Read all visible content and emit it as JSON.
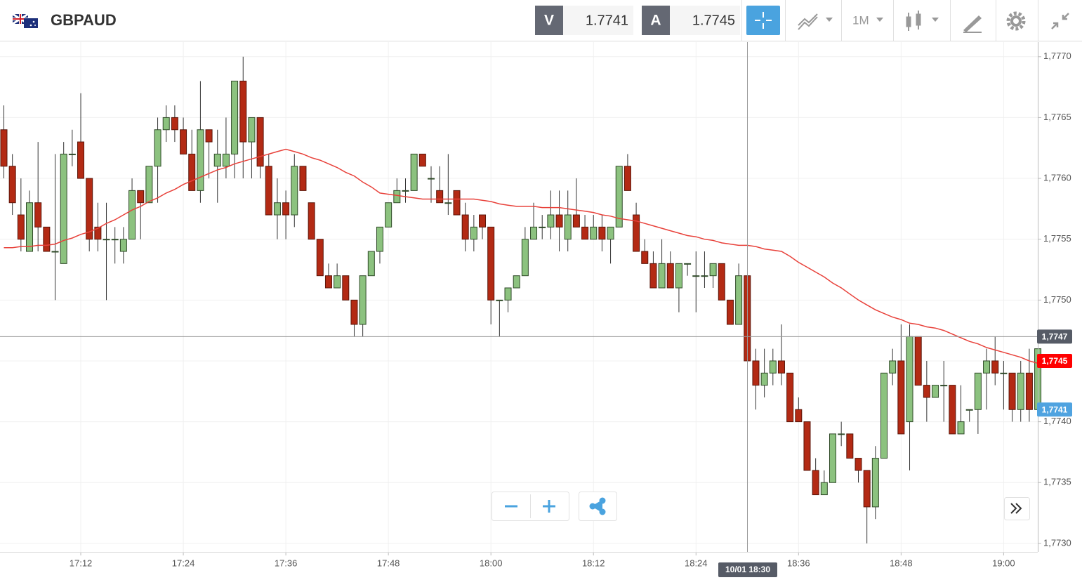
{
  "header": {
    "symbol": "GBPAUD",
    "bid_label": "V",
    "bid": 1.7741,
    "ask_label": "A",
    "ask": 1.7745,
    "timeframe": "1M"
  },
  "chart_data": {
    "type": "candlestick",
    "categories": [
      null,
      null,
      null,
      null,
      null,
      null,
      null,
      null,
      null,
      "17:12",
      null,
      null,
      null,
      null,
      null,
      null,
      null,
      null,
      null,
      null,
      null,
      "17:24",
      null,
      null,
      null,
      null,
      null,
      null,
      null,
      null,
      null,
      null,
      null,
      "17:36",
      null,
      null,
      null,
      null,
      null,
      null,
      null,
      null,
      null,
      null,
      null,
      "17:48",
      null,
      null,
      null,
      null,
      null,
      null,
      null,
      null,
      null,
      null,
      null,
      "18:00",
      null,
      null,
      null,
      null,
      null,
      null,
      null,
      null,
      null,
      null,
      null,
      "18:12",
      null,
      null,
      null,
      null,
      null,
      null,
      null,
      null,
      null,
      null,
      null,
      "18:24",
      null,
      null,
      null,
      null,
      null,
      null,
      null,
      null,
      null,
      null,
      null,
      "18:36",
      null,
      null,
      null,
      null,
      null,
      null,
      null,
      null,
      null,
      null,
      null,
      "18:48",
      null,
      null,
      null,
      null,
      null,
      null,
      null,
      null,
      null,
      null,
      null,
      "19:00",
      null,
      null,
      null,
      null
    ],
    "open": [
      1.7764,
      1.7761,
      1.7757,
      1.7754,
      1.7758,
      1.7756,
      1.7754,
      1.7753,
      1.7762,
      1.7763,
      1.776,
      1.7756,
      1.7755,
      1.7755,
      1.7754,
      1.7755,
      1.7759,
      1.7758,
      1.7761,
      1.7764,
      1.7765,
      1.7764,
      1.7762,
      1.7759,
      1.7764,
      1.7761,
      1.7761,
      1.7762,
      1.7768,
      1.7763,
      1.7765,
      1.7761,
      1.7757,
      1.7758,
      1.7757,
      1.7761,
      1.7758,
      1.7755,
      1.7752,
      1.7751,
      1.7752,
      1.775,
      1.7748,
      1.7752,
      1.7754,
      1.7756,
      1.7758,
      1.7759,
      1.7759,
      1.7762,
      1.776,
      1.7759,
      1.7758,
      1.7759,
      1.7757,
      1.7755,
      1.7757,
      1.7756,
      1.775,
      1.775,
      1.7751,
      1.7752,
      1.7755,
      1.7756,
      1.7756,
      1.7757,
      1.7755,
      1.7757,
      1.7756,
      1.7755,
      1.7756,
      1.7755,
      1.7756,
      1.7761,
      1.7757,
      1.7754,
      1.7753,
      1.7751,
      1.7753,
      1.7751,
      1.7753,
      1.7752,
      1.7752,
      1.7752,
      1.7753,
      1.775,
      1.7748,
      1.7752,
      1.7745,
      1.7743,
      1.7744,
      1.7745,
      1.7744,
      1.7741,
      1.774,
      1.7736,
      1.7734,
      1.7735,
      1.7739,
      1.7739,
      1.7737,
      1.7736,
      1.7733,
      1.7737,
      1.7744,
      1.7745,
      1.774,
      1.7747,
      1.7743,
      1.7742,
      1.7743,
      1.7743,
      1.7739,
      1.7741,
      1.7741,
      1.7744,
      1.7745,
      1.7744,
      1.7744,
      1.7741,
      1.7744,
      1.7741
    ],
    "high": [
      1.7766,
      1.7762,
      1.776,
      1.7759,
      1.7763,
      1.7756,
      1.7762,
      1.7763,
      1.7764,
      1.7767,
      1.776,
      1.7758,
      1.7758,
      1.7756,
      1.7756,
      1.776,
      1.7759,
      1.7761,
      1.7765,
      1.7766,
      1.7766,
      1.7765,
      1.7764,
      1.7768,
      1.7764,
      1.7764,
      1.7765,
      1.7768,
      1.777,
      1.7765,
      1.7765,
      1.7762,
      1.776,
      1.7759,
      1.7762,
      1.7761,
      1.7758,
      1.7755,
      1.7753,
      1.7753,
      1.7752,
      1.775,
      1.7752,
      1.7754,
      1.7756,
      1.7758,
      1.776,
      1.776,
      1.7762,
      1.7762,
      1.7761,
      1.7761,
      1.7762,
      1.7759,
      1.7758,
      1.7757,
      1.7757,
      1.7756,
      1.775,
      1.7751,
      1.7752,
      1.7756,
      1.7758,
      1.7757,
      1.7759,
      1.7759,
      1.7759,
      1.776,
      1.7757,
      1.7757,
      1.7757,
      1.7756,
      1.7761,
      1.7762,
      1.7758,
      1.7755,
      1.7754,
      1.7755,
      1.7754,
      1.7753,
      1.7753,
      1.7754,
      1.7754,
      1.7753,
      1.7753,
      1.775,
      1.7753,
      1.7752,
      1.7746,
      1.7746,
      1.7746,
      1.7748,
      1.7744,
      1.7742,
      1.774,
      1.7737,
      1.7736,
      1.7739,
      1.774,
      1.7739,
      1.7737,
      1.7736,
      1.7738,
      1.7744,
      1.7746,
      1.7748,
      1.7748,
      1.7747,
      1.7745,
      1.7743,
      1.7745,
      1.7743,
      1.7743,
      1.7741,
      1.7744,
      1.7746,
      1.7747,
      1.7745,
      1.7744,
      1.7745,
      1.7746,
      1.7746
    ],
    "low": [
      1.776,
      1.7757,
      1.7754,
      1.7754,
      1.7754,
      1.7754,
      1.775,
      1.7753,
      1.7761,
      1.776,
      1.7754,
      1.7754,
      1.775,
      1.7753,
      1.7753,
      1.7755,
      1.7755,
      1.7758,
      1.7758,
      1.7763,
      1.7763,
      1.7762,
      1.7759,
      1.7758,
      1.776,
      1.7758,
      1.776,
      1.776,
      1.776,
      1.776,
      1.776,
      1.7757,
      1.7755,
      1.7755,
      1.7756,
      1.7759,
      1.7755,
      1.7752,
      1.7751,
      1.7751,
      1.775,
      1.7747,
      1.7747,
      1.7752,
      1.7753,
      1.7756,
      1.7758,
      1.7758,
      1.7759,
      1.7761,
      1.7758,
      1.7758,
      1.7757,
      1.7757,
      1.7754,
      1.7754,
      1.7755,
      1.7748,
      1.7747,
      1.7749,
      1.7751,
      1.7752,
      1.7755,
      1.7755,
      1.7755,
      1.7754,
      1.7754,
      1.7756,
      1.7755,
      1.7755,
      1.7754,
      1.7753,
      1.7756,
      1.7759,
      1.7754,
      1.7753,
      1.7751,
      1.7751,
      1.7751,
      1.7749,
      1.7752,
      1.7749,
      1.7751,
      1.7751,
      1.775,
      1.7748,
      1.7748,
      1.7745,
      1.7741,
      1.7742,
      1.7743,
      1.7743,
      1.774,
      1.774,
      1.7736,
      1.7734,
      1.7734,
      1.7735,
      1.7738,
      1.7737,
      1.7735,
      1.773,
      1.7732,
      1.7737,
      1.7743,
      1.7739,
      1.7736,
      1.7743,
      1.774,
      1.7742,
      1.774,
      1.7739,
      1.7739,
      1.774,
      1.7739,
      1.7741,
      1.7743,
      1.7741,
      1.774,
      1.774,
      1.774,
      1.7741
    ],
    "close": [
      1.7761,
      1.7758,
      1.7755,
      1.7758,
      1.7756,
      1.7754,
      1.7754,
      1.7762,
      1.7762,
      1.776,
      1.7755,
      1.7755,
      1.7755,
      1.7755,
      1.7755,
      1.7759,
      1.7758,
      1.7761,
      1.7764,
      1.7765,
      1.7764,
      1.7762,
      1.7759,
      1.7764,
      1.7763,
      1.7762,
      1.7762,
      1.7768,
      1.7763,
      1.7765,
      1.7761,
      1.7757,
      1.7758,
      1.7757,
      1.7761,
      1.7759,
      1.7755,
      1.7752,
      1.7751,
      1.7752,
      1.775,
      1.7748,
      1.7752,
      1.7754,
      1.7756,
      1.7758,
      1.7759,
      1.7759,
      1.7762,
      1.7761,
      1.776,
      1.7758,
      1.7758,
      1.7757,
      1.7755,
      1.7756,
      1.7756,
      1.775,
      1.775,
      1.7751,
      1.7752,
      1.7755,
      1.7756,
      1.7756,
      1.7757,
      1.7756,
      1.7757,
      1.7756,
      1.7755,
      1.7756,
      1.7755,
      1.7756,
      1.7761,
      1.7759,
      1.7754,
      1.7753,
      1.7751,
      1.7753,
      1.7751,
      1.7753,
      1.7753,
      1.7752,
      1.7752,
      1.7753,
      1.775,
      1.7748,
      1.7752,
      1.7745,
      1.7743,
      1.7744,
      1.7745,
      1.7744,
      1.774,
      1.774,
      1.7736,
      1.7734,
      1.7735,
      1.7739,
      1.7739,
      1.7737,
      1.7736,
      1.7733,
      1.7737,
      1.7744,
      1.7745,
      1.7739,
      1.7747,
      1.7743,
      1.7742,
      1.7743,
      1.7743,
      1.7739,
      1.774,
      1.7741,
      1.7744,
      1.7745,
      1.7744,
      1.7744,
      1.7741,
      1.7744,
      1.7741,
      1.7746
    ],
    "up_color": "#8cc27f",
    "down_color": "#b32a14",
    "moving_average": {
      "color": "#e8413a",
      "values": [
        1.77543,
        1.77543,
        1.77544,
        1.77544,
        1.77545,
        1.77545,
        1.77546,
        1.77549,
        1.77551,
        1.77554,
        1.77556,
        1.77559,
        1.77563,
        1.77566,
        1.7757,
        1.77574,
        1.77577,
        1.77581,
        1.77584,
        1.77588,
        1.77591,
        1.77595,
        1.77598,
        1.77601,
        1.77604,
        1.77607,
        1.77609,
        1.77612,
        1.77614,
        1.77616,
        1.77618,
        1.7762,
        1.77622,
        1.77624,
        1.77622,
        1.7762,
        1.77617,
        1.77615,
        1.77612,
        1.77609,
        1.77605,
        1.77602,
        1.77597,
        1.77593,
        1.77588,
        1.77587,
        1.77586,
        1.77585,
        1.77584,
        1.77583,
        1.77583,
        1.77583,
        1.77583,
        1.77583,
        1.77583,
        1.77583,
        1.77582,
        1.77581,
        1.77579,
        1.77578,
        1.77577,
        1.77577,
        1.77577,
        1.77576,
        1.77576,
        1.77576,
        1.77575,
        1.77574,
        1.77573,
        1.77572,
        1.7757,
        1.77569,
        1.77567,
        1.77566,
        1.77565,
        1.77563,
        1.77561,
        1.77559,
        1.77557,
        1.77555,
        1.77553,
        1.77552,
        1.7755,
        1.77549,
        1.77547,
        1.77546,
        1.77545,
        1.77545,
        1.77544,
        1.77542,
        1.77541,
        1.7754,
        1.77536,
        1.77531,
        1.77527,
        1.77523,
        1.77519,
        1.77514,
        1.7751,
        1.77505,
        1.775,
        1.77496,
        1.77492,
        1.77489,
        1.77486,
        1.77484,
        1.77481,
        1.7748,
        1.77478,
        1.77477,
        1.77475,
        1.77472,
        1.77469,
        1.77466,
        1.77464,
        1.77461,
        1.77459,
        1.77457,
        1.77455,
        1.77453,
        1.7745,
        1.77448
      ]
    },
    "ylim": [
      1.77293,
      1.77712
    ],
    "yticks": [
      {
        "value": 1.773,
        "label": "1,7730"
      },
      {
        "value": 1.7735,
        "label": "1,7735"
      },
      {
        "value": 1.774,
        "label": "1,7740"
      },
      {
        "value": 1.7745,
        "label": "1,7745"
      },
      {
        "value": 1.775,
        "label": "1,7750"
      },
      {
        "value": 1.7755,
        "label": "1,7755"
      },
      {
        "value": 1.776,
        "label": "1,7760"
      },
      {
        "value": 1.7765,
        "label": "1,7765"
      },
      {
        "value": 1.777,
        "label": "1,7770"
      }
    ],
    "grid": true,
    "price_markers": [
      {
        "value": 1.7747,
        "label": "1,7747",
        "color": "#565b66",
        "line": true
      },
      {
        "value": 1.7745,
        "label": "1,7745",
        "color": "#ff0000"
      },
      {
        "value": 1.7741,
        "label": "1,7741",
        "color": "#4fa3e0"
      }
    ],
    "crosshair_time": "10/01 18:30"
  }
}
